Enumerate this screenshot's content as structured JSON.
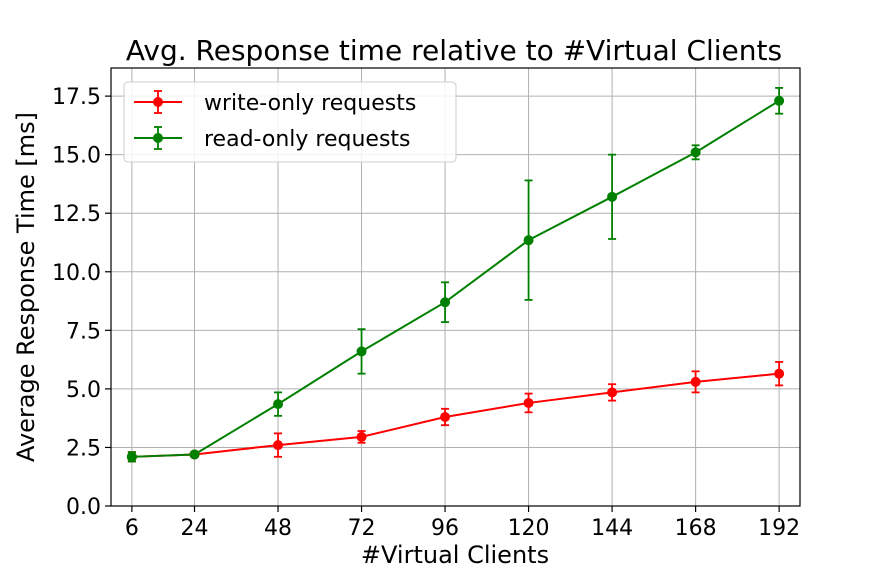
{
  "chart_data": {
    "type": "line",
    "title": "Avg. Response time relative to #Virtual Clients",
    "xlabel": "#Virtual Clients",
    "ylabel": "Average Response Time [ms]",
    "x": [
      6,
      24,
      48,
      72,
      96,
      120,
      144,
      168,
      192
    ],
    "x_tick_labels": [
      "6",
      "24",
      "48",
      "72",
      "96",
      "120",
      "144",
      "168",
      "192"
    ],
    "xlim": [
      0,
      198
    ],
    "ylim": [
      0,
      18.7
    ],
    "y_ticks": [
      0.0,
      2.5,
      5.0,
      7.5,
      10.0,
      12.5,
      15.0,
      17.5
    ],
    "y_tick_labels": [
      "0.0",
      "2.5",
      "5.0",
      "7.5",
      "10.0",
      "12.5",
      "15.0",
      "17.5"
    ],
    "grid": true,
    "legend_position": "top-left",
    "series": [
      {
        "name": "write-only requests",
        "color": "#ff0000",
        "values": [
          2.1,
          2.2,
          2.6,
          2.95,
          3.8,
          4.4,
          4.85,
          5.3,
          5.65
        ],
        "errors": [
          0.2,
          0.1,
          0.5,
          0.25,
          0.35,
          0.4,
          0.35,
          0.45,
          0.5
        ]
      },
      {
        "name": "read-only requests",
        "color": "#008000",
        "values": [
          2.1,
          2.2,
          4.35,
          6.6,
          8.7,
          11.35,
          13.2,
          15.1,
          17.3
        ],
        "errors": [
          0.2,
          0.1,
          0.5,
          0.95,
          0.85,
          2.55,
          1.8,
          0.3,
          0.55
        ]
      }
    ]
  }
}
